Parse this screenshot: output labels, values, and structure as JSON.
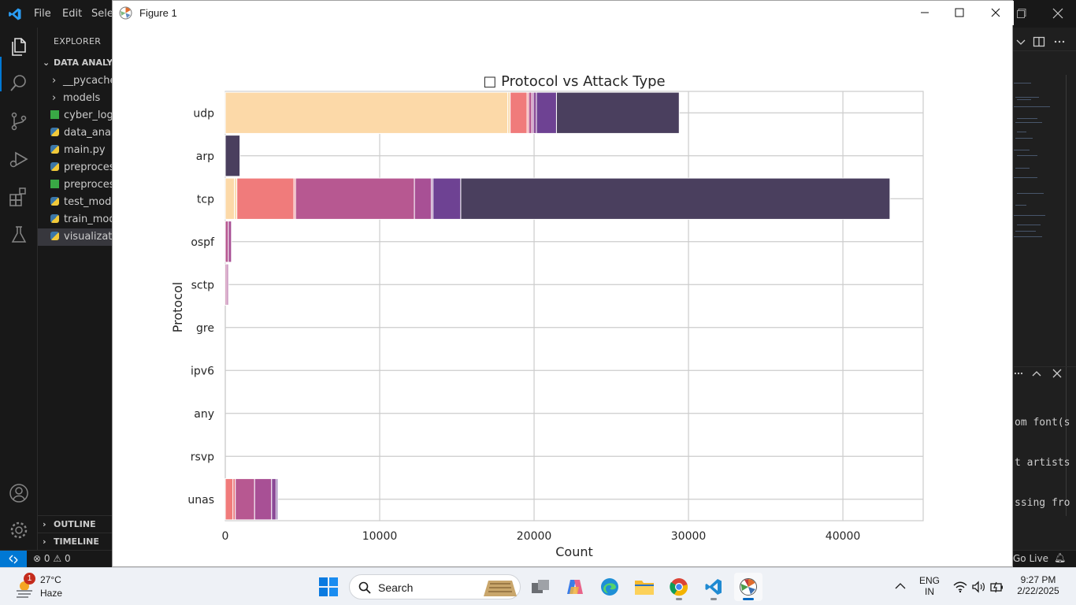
{
  "vscode": {
    "menu": [
      "File",
      "Edit",
      "Sele"
    ],
    "explorer_title": "EXPLORER",
    "folder": "DATA ANALYT",
    "tree": [
      {
        "label": "__pycache_",
        "kind": "folder"
      },
      {
        "label": "models",
        "kind": "folder"
      },
      {
        "label": "cyber_logs",
        "kind": "csv"
      },
      {
        "label": "data_analy",
        "kind": "py"
      },
      {
        "label": "main.py",
        "kind": "py"
      },
      {
        "label": "preprocess",
        "kind": "py"
      },
      {
        "label": "preprocess",
        "kind": "csv"
      },
      {
        "label": "test_mode",
        "kind": "py"
      },
      {
        "label": "train_mode",
        "kind": "py"
      },
      {
        "label": "visualizatio",
        "kind": "py",
        "selected": true
      }
    ],
    "outline": "OUTLINE",
    "timeline": "TIMELINE",
    "status": {
      "errors": "0",
      "warnings": "0",
      "go_live": "Go Live"
    },
    "panel_lines": [
      "om font(s",
      "t artists",
      "ssing fro"
    ]
  },
  "figure": {
    "window_title": "Figure 1"
  },
  "chart_data": {
    "type": "bar",
    "orientation": "horizontal",
    "stacked": true,
    "title": "□ Protocol vs Attack Type",
    "xlabel": "Count",
    "ylabel": "Protocol",
    "xlim": [
      0,
      45200
    ],
    "xticks": [
      "0",
      "10000",
      "20000",
      "30000",
      "40000"
    ],
    "grid": true,
    "categories": [
      "udp",
      "arp",
      "tcp",
      "ospf",
      "sctp",
      "gre",
      "ipv6",
      "any",
      "rsvp",
      "unas"
    ],
    "series": [
      {
        "color": "#fcd9a8",
        "values": [
          18300,
          0,
          600,
          0,
          0,
          0,
          0,
          0,
          0,
          0
        ]
      },
      {
        "color": "#fad7a6",
        "values": [
          150,
          0,
          150,
          0,
          0,
          0,
          0,
          0,
          0,
          0
        ]
      },
      {
        "color": "#f07b7b",
        "values": [
          1100,
          0,
          3700,
          0,
          0,
          0,
          0,
          0,
          0,
          500
        ]
      },
      {
        "color": "#e96f74",
        "values": [
          100,
          0,
          100,
          0,
          0,
          0,
          0,
          0,
          0,
          150
        ]
      },
      {
        "color": "#b75891",
        "values": [
          200,
          0,
          7700,
          200,
          100,
          0,
          0,
          0,
          0,
          1250
        ]
      },
      {
        "color": "#a85095",
        "values": [
          100,
          0,
          1100,
          200,
          100,
          0,
          0,
          0,
          0,
          1100
        ]
      },
      {
        "color": "#8c4c98",
        "values": [
          200,
          0,
          100,
          0,
          0,
          0,
          0,
          0,
          0,
          300
        ]
      },
      {
        "color": "#6e4293",
        "values": [
          1300,
          0,
          1800,
          0,
          0,
          0,
          0,
          0,
          0,
          100
        ]
      },
      {
        "color": "#4a3f5e",
        "values": [
          7950,
          950,
          27800,
          0,
          0,
          0,
          0,
          0,
          0,
          0
        ]
      }
    ]
  },
  "taskbar": {
    "weather_temp": "27°C",
    "weather_desc": "Haze",
    "badge": "1",
    "search": "Search",
    "lang_top": "ENG",
    "lang_bottom": "IN",
    "time": "9:27 PM",
    "date": "2/22/2025"
  }
}
